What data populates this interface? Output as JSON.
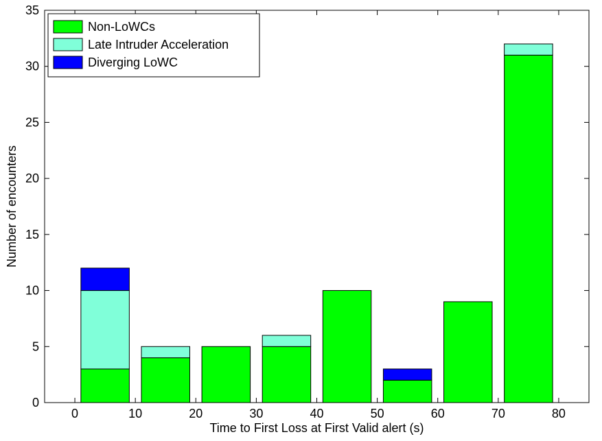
{
  "chart_data": {
    "type": "bar",
    "stacked": true,
    "title": "",
    "xlabel": "Time to First Loss at First Valid alert (s)",
    "ylabel": "Number of encounters",
    "xlim": [
      -5,
      85
    ],
    "ylim": [
      0,
      35
    ],
    "xticks": [
      0,
      10,
      20,
      30,
      40,
      50,
      60,
      70,
      80
    ],
    "yticks": [
      0,
      5,
      10,
      15,
      20,
      25,
      30,
      35
    ],
    "bin_centers": [
      5,
      15,
      25,
      35,
      45,
      55,
      65,
      75
    ],
    "bin_width": 8,
    "series": [
      {
        "name": "Non-LoWCs",
        "color": "#00ff00",
        "values": [
          3,
          4,
          5,
          5,
          10,
          2,
          9,
          31
        ]
      },
      {
        "name": "Late Intruder Acceleration",
        "color": "#80ffd9",
        "values": [
          7,
          1,
          0,
          1,
          0,
          0,
          0,
          1
        ]
      },
      {
        "name": "Diverging LoWC",
        "color": "#0000ff",
        "values": [
          2,
          0,
          0,
          0,
          0,
          1,
          0,
          0
        ]
      }
    ],
    "legend_position": "top-left",
    "grid": false
  }
}
